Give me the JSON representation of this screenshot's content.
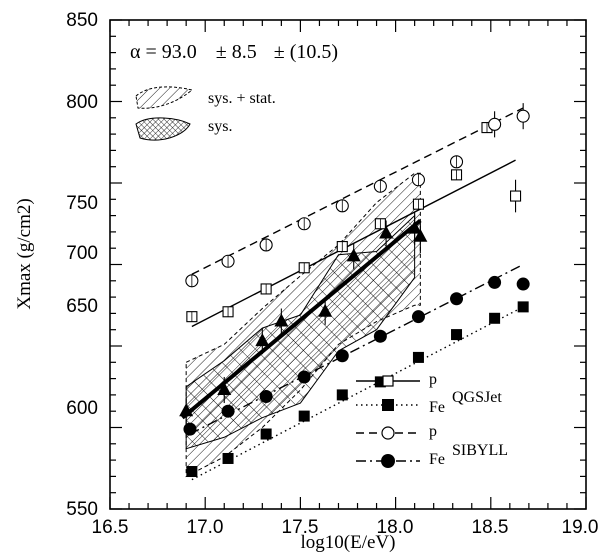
{
  "chart_data": {
    "type": "scatter",
    "xlabel": "log10(E/eV)",
    "ylabel": "Xmax (g/cm2)",
    "xlim": [
      16.5,
      19.0
    ],
    "ylim": [
      550,
      850
    ],
    "xticks": [
      "16.5",
      "17.0",
      "17.5",
      "18.0",
      "18.5",
      "19.0"
    ],
    "yticks": [
      "550",
      "600",
      "650",
      "700",
      "750",
      "800",
      "850"
    ],
    "grid": false,
    "legend_position": "bottom-right",
    "annotation": {
      "alpha": "α = 93.0",
      "stat_err": "± 8.5",
      "sys_err": "± (10.5)"
    },
    "band_legend": [
      {
        "key": "sys_stat",
        "label": "sys. + stat."
      },
      {
        "key": "sys",
        "label": "sys."
      }
    ],
    "models": [
      {
        "model": "QGSJet",
        "entries": [
          {
            "primary": "p",
            "marker": "open-square",
            "line": "solid"
          },
          {
            "primary": "Fe",
            "marker": "filled-square",
            "line": "dotted"
          }
        ]
      },
      {
        "model": "SIBYLL",
        "entries": [
          {
            "primary": "p",
            "marker": "open-circle",
            "line": "dashed"
          },
          {
            "primary": "Fe",
            "marker": "filled-circle",
            "line": "dash-dot"
          }
        ]
      }
    ],
    "fit_line": {
      "x": [
        16.88,
        18.13
      ],
      "y": [
        606,
        727
      ],
      "elongation_rate": 93.0
    },
    "sys_stat_band": {
      "x": [
        16.9,
        17.1,
        17.3,
        17.5,
        17.7,
        17.9,
        18.1,
        18.13
      ],
      "upper": [
        640,
        651,
        673,
        693,
        712,
        738,
        756,
        756
      ],
      "lower": [
        570,
        582,
        600,
        623,
        651,
        665,
        675,
        675
      ]
    },
    "sys_band": {
      "x": [
        16.9,
        17.1,
        17.3,
        17.5,
        17.7,
        17.9,
        18.1
      ],
      "upper": [
        625,
        641,
        661,
        669,
        706,
        708,
        730
      ],
      "lower": [
        587,
        594,
        606,
        615,
        647,
        660,
        692
      ]
    },
    "series": [
      {
        "name": "data",
        "marker": "filled-triangle",
        "x": [
          16.9,
          17.1,
          17.3,
          17.4,
          17.63,
          17.78,
          17.95,
          18.1,
          18.13
        ],
        "y": [
          610,
          623,
          653,
          665,
          671,
          705,
          719,
          722,
          717
        ],
        "yerr": [
          8,
          8,
          8,
          8,
          8,
          8,
          8,
          10,
          10
        ]
      },
      {
        "name": "p",
        "model": "QGSJet",
        "marker": "open-square",
        "line": "solid",
        "x": [
          16.93,
          17.12,
          17.32,
          17.52,
          17.72,
          17.92,
          18.12,
          18.32,
          18.48,
          18.63
        ],
        "y": [
          668,
          671,
          685,
          698,
          711,
          725,
          737,
          755,
          784,
          742
        ],
        "yerr": [
          0,
          0,
          0,
          0,
          0,
          0,
          0,
          0,
          0,
          10
        ],
        "fit": {
          "x": [
            16.93,
            18.63
          ],
          "y": [
            662,
            764
          ]
        }
      },
      {
        "name": "Fe",
        "model": "QGSJet",
        "marker": "filled-square",
        "line": "dotted",
        "x": [
          16.93,
          17.12,
          17.32,
          17.52,
          17.72,
          17.92,
          18.12,
          18.32,
          18.52,
          18.67
        ],
        "y": [
          573,
          581,
          596,
          607,
          620,
          628,
          643,
          657,
          667,
          674
        ],
        "fit": {
          "x": [
            16.93,
            18.67
          ],
          "y": [
            568,
            674
          ]
        }
      },
      {
        "name": "p",
        "model": "SIBYLL",
        "marker": "open-circle",
        "line": "dashed",
        "x": [
          16.93,
          17.12,
          17.32,
          17.52,
          17.72,
          17.92,
          18.12,
          18.32,
          18.52,
          18.67
        ],
        "y": [
          690,
          702,
          712,
          725,
          736,
          748,
          752,
          763,
          786,
          791
        ],
        "yerr": [
          0,
          0,
          0,
          0,
          0,
          0,
          0,
          0,
          8,
          8
        ],
        "fit": {
          "x": [
            16.93,
            18.67
          ],
          "y": [
            694,
            796
          ]
        }
      },
      {
        "name": "Fe",
        "model": "SIBYLL",
        "marker": "filled-circle",
        "line": "dash-dot",
        "x": [
          16.92,
          17.12,
          17.32,
          17.52,
          17.72,
          17.92,
          18.12,
          18.32,
          18.52,
          18.67
        ],
        "y": [
          599,
          610,
          619,
          631,
          644,
          656,
          668,
          679,
          689,
          688
        ],
        "fit": {
          "x": [
            16.92,
            18.67
          ],
          "y": [
            596,
            700
          ]
        }
      }
    ]
  }
}
